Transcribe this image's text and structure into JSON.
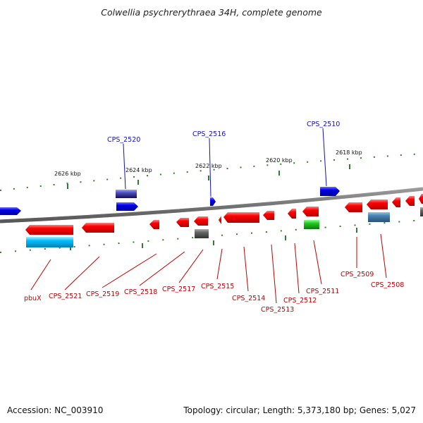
{
  "title": "Colwellia psychrerythraea 34H, complete genome",
  "footer": {
    "accession": "Accession: NC_003910",
    "topology": "Topology: circular; Length: 5,373,180 bp; Genes: 5,027"
  },
  "scale": [
    "2626 kbp",
    "2624 kbp",
    "2622 kbp",
    "2620 kbp",
    "2618 kbp"
  ],
  "labels_top": [
    "CPS_2520",
    "CPS_2516",
    "CPS_2510"
  ],
  "labels_bottom": [
    "pbuX",
    "CPS_2521",
    "CPS_2519",
    "CPS_2518",
    "CPS_2517",
    "CPS_2515",
    "CPS_2514",
    "CPS_2513",
    "CPS_2512",
    "CPS_2511",
    "CPS_2509",
    "CPS_2508"
  ],
  "colors": {
    "gene_reverse": "#ff0000",
    "gene_forward": "#0000ff",
    "rna_gene": "#00bfff",
    "pseudo_gene": "#666666",
    "other_gene": "#22cc22",
    "steel_gene": "#4682b4",
    "tick_green": "#2e7d32",
    "backbone": "#888888"
  }
}
